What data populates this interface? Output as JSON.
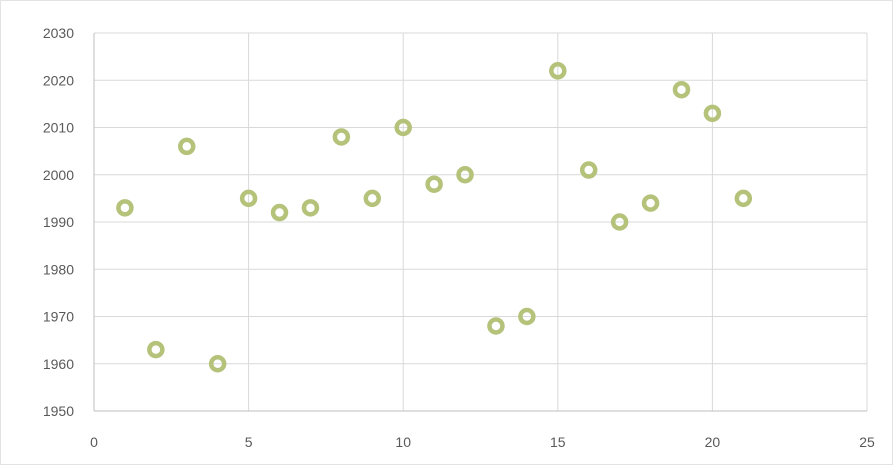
{
  "chart_data": {
    "type": "scatter",
    "title": "",
    "xlabel": "",
    "ylabel": "",
    "xlim": [
      0,
      25
    ],
    "ylim": [
      1950,
      2030
    ],
    "x_ticks": [
      0,
      5,
      10,
      15,
      20,
      25
    ],
    "y_ticks": [
      1950,
      1960,
      1970,
      1980,
      1990,
      2000,
      2010,
      2020,
      2030
    ],
    "grid": true,
    "legend": "none",
    "marker_color": "#b5c27a",
    "series": [
      {
        "x": [
          1,
          2,
          3,
          4,
          5,
          6,
          7,
          8,
          9,
          10,
          11,
          12,
          13,
          14,
          15,
          16,
          17,
          18,
          19,
          20,
          21
        ],
        "y": [
          1993,
          1963,
          2006,
          1960,
          1995,
          1992,
          1993,
          2008,
          1995,
          2010,
          1998,
          2000,
          1968,
          1970,
          2022,
          2001,
          1990,
          1994,
          2018,
          2013,
          1995
        ]
      }
    ]
  }
}
